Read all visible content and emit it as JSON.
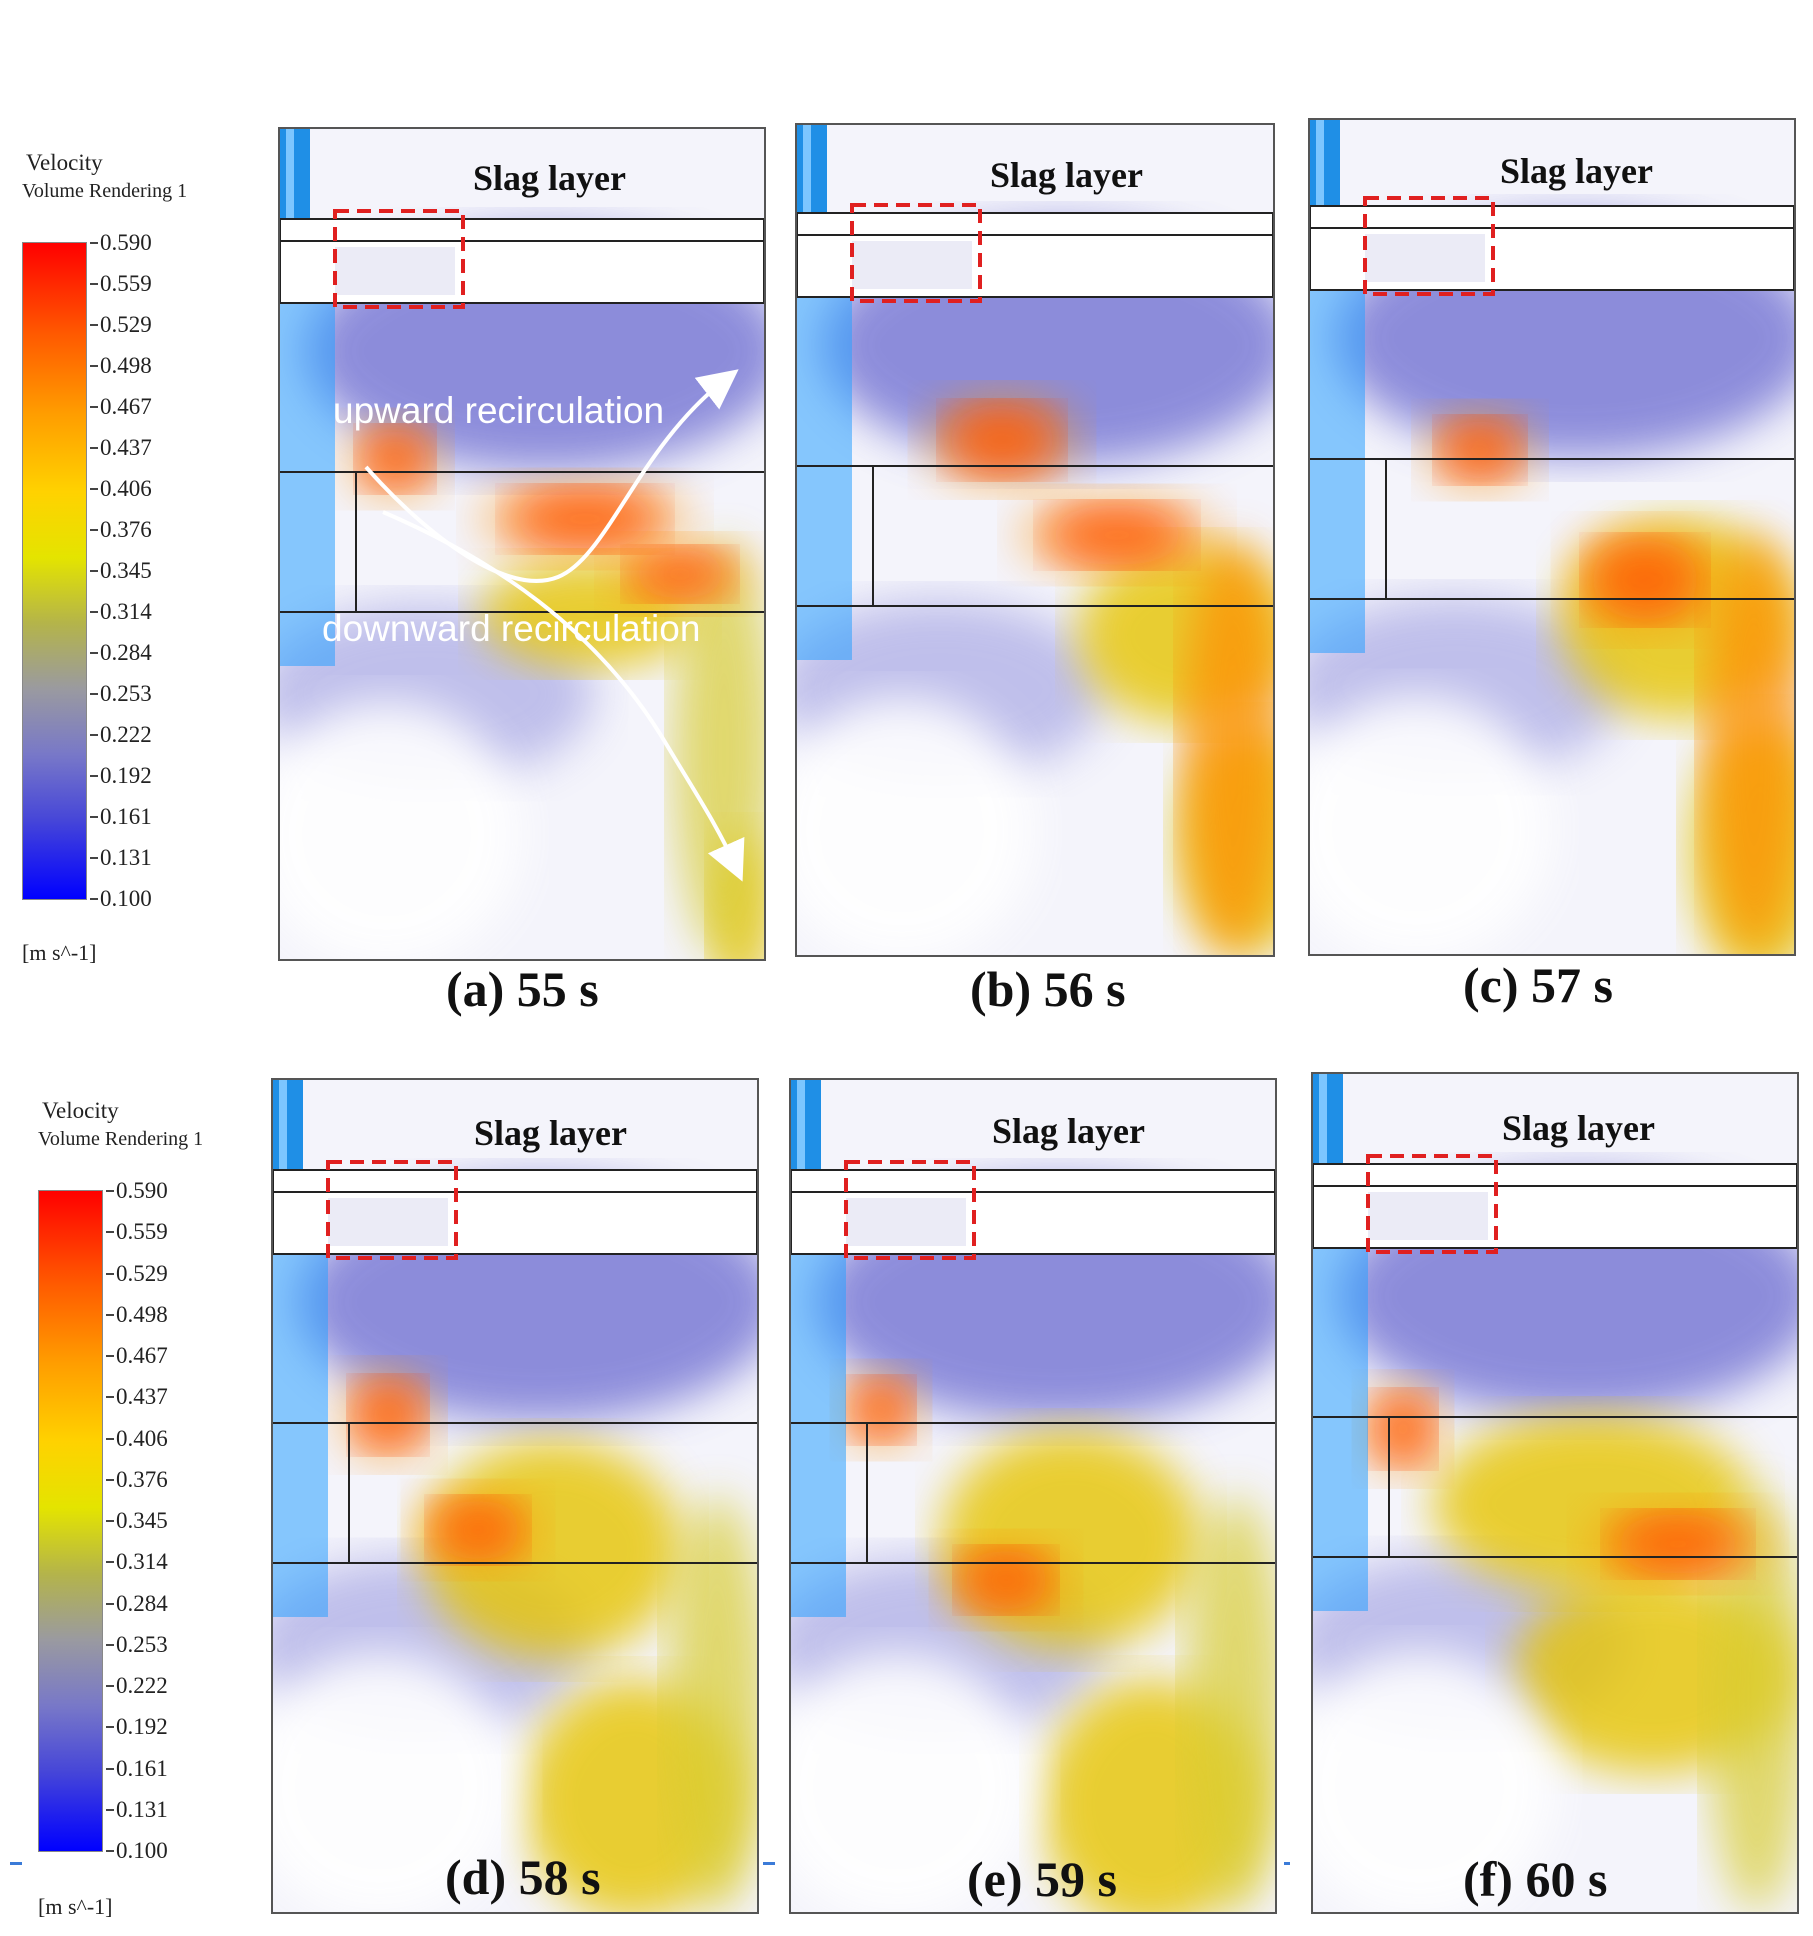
{
  "legend": {
    "title": "Velocity",
    "subtitle": "Volume Rendering 1",
    "ticks": [
      "0.590",
      "0.559",
      "0.529",
      "0.498",
      "0.467",
      "0.437",
      "0.406",
      "0.376",
      "0.345",
      "0.314",
      "0.284",
      "0.253",
      "0.222",
      "0.192",
      "0.161",
      "0.131",
      "0.100"
    ],
    "unit": "[m s^-1]"
  },
  "panels": [
    {
      "caption": "(a) 55 s",
      "slag_label": "Slag layer"
    },
    {
      "caption": "(b) 56 s",
      "slag_label": "Slag layer"
    },
    {
      "caption": "(c) 57 s",
      "slag_label": "Slag layer"
    },
    {
      "caption": "(d) 58 s",
      "slag_label": "Slag layer"
    },
    {
      "caption": "(e) 59 s",
      "slag_label": "Slag layer"
    },
    {
      "caption": "(f) 60 s",
      "slag_label": "Slag layer"
    }
  ],
  "annotations": {
    "upward": "upward recirculation",
    "downward": "downward recirculation"
  },
  "colors": {
    "max": "#ff0000",
    "mid": "#e4e400",
    "min": "#0000ff",
    "nozzle": "#1f8fe6",
    "dashed_box": "#e02020"
  }
}
